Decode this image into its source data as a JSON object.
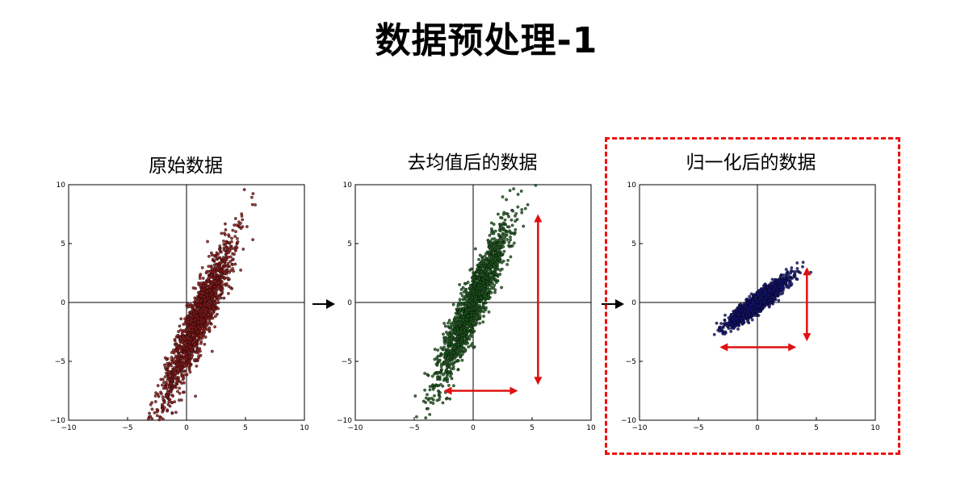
{
  "title": "数据预处理-1",
  "colors": {
    "original": "#8b1a1a",
    "centered": "#1f5a1f",
    "normalized": "#15157a",
    "arrow": "#e01010",
    "highlight": "#ee1111"
  },
  "chart_data": [
    {
      "type": "scatter",
      "title": "原始数据",
      "xlim": [
        -10,
        10
      ],
      "ylim": [
        -10,
        10
      ],
      "xticks": [
        -10,
        -5,
        0,
        5,
        10
      ],
      "yticks": [
        -10,
        -5,
        0,
        5,
        10
      ],
      "center": [
        1.0,
        -1.5
      ],
      "major_spread": 3.9,
      "minor_spread": 0.55,
      "angle_deg": 67,
      "n_points": 1500
    },
    {
      "type": "scatter",
      "title": "去均值后的数据",
      "xlim": [
        -10,
        10
      ],
      "ylim": [
        -10,
        10
      ],
      "xticks": [
        -10,
        -5,
        0,
        5,
        10
      ],
      "yticks": [
        -10,
        -5,
        0,
        5,
        10
      ],
      "center": [
        0,
        0
      ],
      "major_spread": 3.9,
      "minor_spread": 0.55,
      "angle_deg": 67,
      "n_points": 1500,
      "annotations": [
        {
          "type": "double-arrow",
          "from": [
            5.5,
            7.5
          ],
          "to": [
            5.5,
            -7.0
          ]
        },
        {
          "type": "double-arrow",
          "from": [
            -2.5,
            -7.5
          ],
          "to": [
            3.8,
            -7.5
          ]
        }
      ]
    },
    {
      "type": "scatter",
      "title": "归一化后的数据",
      "xlim": [
        -10,
        10
      ],
      "ylim": [
        -10,
        10
      ],
      "xticks": [
        -10,
        -5,
        0,
        5,
        10
      ],
      "yticks": [
        -10,
        -5,
        0,
        5,
        10
      ],
      "center": [
        0,
        0
      ],
      "major_spread": 1.6,
      "minor_spread": 0.32,
      "angle_deg": 38,
      "n_points": 1500,
      "annotations": [
        {
          "type": "double-arrow",
          "from": [
            4.2,
            3.0
          ],
          "to": [
            4.2,
            -3.3
          ]
        },
        {
          "type": "double-arrow",
          "from": [
            -3.2,
            -3.8
          ],
          "to": [
            3.3,
            -3.8
          ]
        }
      ]
    }
  ]
}
